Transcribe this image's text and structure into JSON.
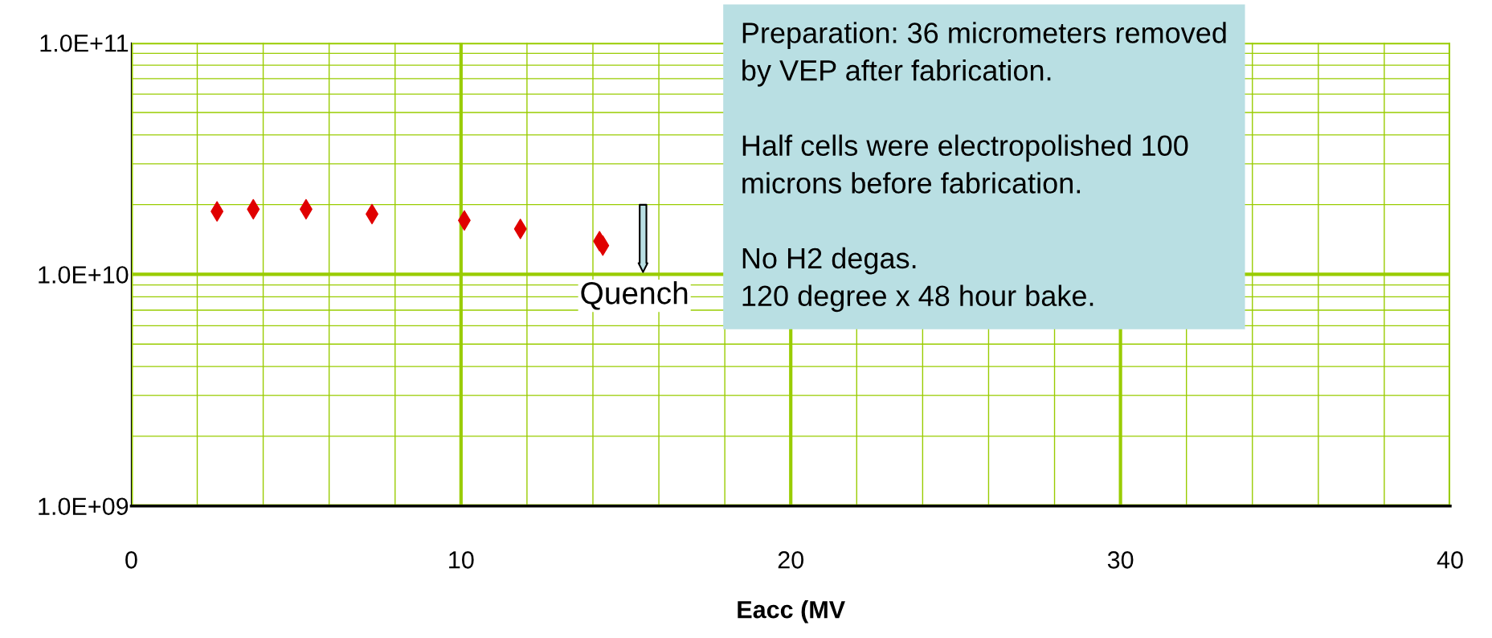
{
  "chart_data": {
    "type": "scatter",
    "xlabel": "Eacc (MV",
    "x": [
      2.6,
      3.7,
      5.3,
      7.3,
      10.1,
      11.8,
      14.2,
      14.3
    ],
    "series": [
      {
        "color": "#e00000",
        "values": [
          18700000000.0,
          19100000000.0,
          19100000000.0,
          18200000000.0,
          17100000000.0,
          15700000000.0,
          13900000000.0,
          13300000000.0
        ]
      }
    ],
    "marker": "diamond",
    "log": "y",
    "grid": true,
    "legend": false,
    "xlim": [
      0,
      40
    ],
    "xticks": [
      0,
      {
        "value": 2,
        "label": null
      },
      {
        "value": 4,
        "label": null
      },
      {
        "value": 6,
        "label": null
      },
      {
        "value": 8,
        "label": null
      },
      10,
      {
        "value": 12,
        "label": null
      },
      {
        "value": 14,
        "label": null
      },
      {
        "value": 16,
        "label": null
      },
      {
        "value": 18,
        "label": null
      },
      20,
      {
        "value": 22,
        "label": null
      },
      {
        "value": 24,
        "label": null
      },
      {
        "value": 26,
        "label": null
      },
      {
        "value": 28,
        "label": null
      },
      30,
      {
        "value": 32,
        "label": null
      },
      {
        "value": 34,
        "label": null
      },
      {
        "value": 36,
        "label": null
      },
      {
        "value": 38,
        "label": null
      },
      40
    ],
    "ylim": [
      1000000000.0,
      100000000000.0
    ],
    "yticks": [
      {
        "value": 1000000000.0,
        "label": "1.0E+09"
      },
      {
        "value": 2000000000.0,
        "label": null
      },
      {
        "value": 3000000000.0,
        "label": null
      },
      {
        "value": 4000000000.0,
        "label": null
      },
      {
        "value": 5000000000.0,
        "label": null
      },
      {
        "value": 6000000000.0,
        "label": null
      },
      {
        "value": 7000000000.0,
        "label": null
      },
      {
        "value": 8000000000.0,
        "label": null
      },
      {
        "value": 9000000000.0,
        "label": null
      },
      {
        "value": 10000000000.0,
        "label": "1.0E+10"
      },
      {
        "value": 20000000000.0,
        "label": null
      },
      {
        "value": 30000000000.0,
        "label": null
      },
      {
        "value": 40000000000.0,
        "label": null
      },
      {
        "value": 50000000000.0,
        "label": null
      },
      {
        "value": 60000000000.0,
        "label": null
      },
      {
        "value": 70000000000.0,
        "label": null
      },
      {
        "value": 80000000000.0,
        "label": null
      },
      {
        "value": 90000000000.0,
        "label": null
      },
      {
        "value": 100000000000.0,
        "label": "1.0E+11"
      }
    ],
    "annotations": [
      "Quench",
      "Preparation: 36 micrometers removed\nby VEP after fabrication.\n\nHalf cells were electropolished 100\nmicrons before fabrication.\n\nNo H2 degas.\n120 degree x 48 hour bake."
    ]
  }
}
